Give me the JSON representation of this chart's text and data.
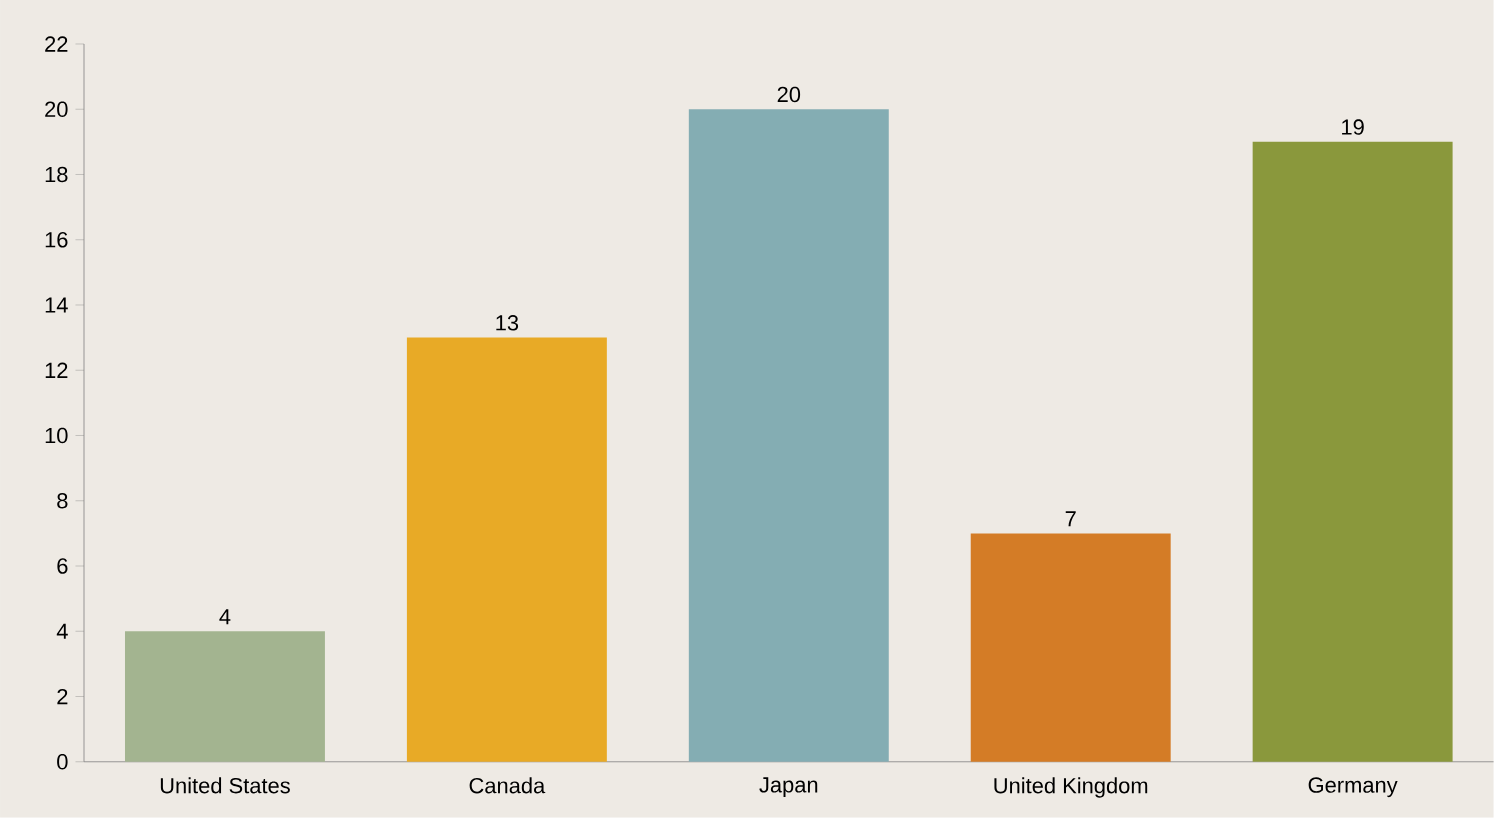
{
  "chart_data": {
    "type": "bar",
    "categories": [
      "United States",
      "Canada",
      "Japan",
      "United Kingdom",
      "Germany"
    ],
    "values": [
      4,
      13,
      20,
      7,
      19
    ],
    "colors": [
      "#a3b490",
      "#e8aa26",
      "#84adb3",
      "#d47c26",
      "#8a983c"
    ],
    "ylim": [
      0,
      22
    ],
    "yticks": [
      0,
      2,
      4,
      6,
      8,
      10,
      12,
      14,
      16,
      18,
      20,
      22
    ],
    "data_labels": true,
    "grid": false
  }
}
